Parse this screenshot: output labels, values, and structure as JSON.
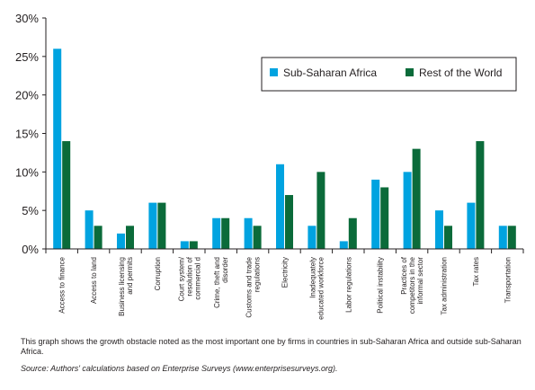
{
  "chart_data": {
    "type": "bar",
    "categories": [
      "Access to finance",
      "Access to land",
      "Business licensing and permits",
      "Corruption",
      "Court system/ resolution of commercial d",
      "Crime, theft and disorder",
      "Customs and trade regulations",
      "Electricity",
      "Inadequately educated workforce",
      "Labor regulations",
      "Political instability",
      "Practices of competitors in the informal sector",
      "Tax administration",
      "Tax rates",
      "Transportation"
    ],
    "category_lines": [
      [
        "Access to finance"
      ],
      [
        "Access to land"
      ],
      [
        "Business licensing",
        "and permits"
      ],
      [
        "Corruption"
      ],
      [
        "Court system/",
        "resolution of",
        "commercial d"
      ],
      [
        "Crime, theft and",
        "disorder"
      ],
      [
        "Customs and trade",
        "regulations"
      ],
      [
        "Electricity"
      ],
      [
        "Inadequately",
        "educated workforce"
      ],
      [
        "Labor regulations"
      ],
      [
        "Political instability"
      ],
      [
        "Practices of",
        "competitors in the",
        "informal sector"
      ],
      [
        "Tax administration"
      ],
      [
        "Tax rates"
      ],
      [
        "Transportation"
      ]
    ],
    "series": [
      {
        "name": "Sub-Saharan Africa",
        "color": "#00a3e0",
        "values": [
          26,
          5,
          2,
          6,
          1,
          4,
          4,
          11,
          3,
          1,
          9,
          10,
          5,
          6,
          3
        ]
      },
      {
        "name": "Rest of the World",
        "color": "#0b6b3a",
        "values": [
          14,
          3,
          3,
          6,
          1,
          4,
          3,
          7,
          10,
          4,
          8,
          13,
          3,
          14,
          3
        ]
      }
    ],
    "yticks": [
      "0%",
      "5%",
      "10%",
      "15%",
      "20%",
      "25%",
      "30%"
    ],
    "ylim": [
      0,
      30
    ],
    "ylabel": "",
    "xlabel": "",
    "title": "",
    "grid": false,
    "legend_position": "top-right"
  },
  "caption": {
    "note": "This graph shows the growth obstacle noted as the most important one by firms in countries in sub-Saharan Africa and outside sub-Saharan Africa.",
    "source": "Source: Authors' calculations based on Enterprise Surveys (www.enterprisesurveys.org)."
  }
}
